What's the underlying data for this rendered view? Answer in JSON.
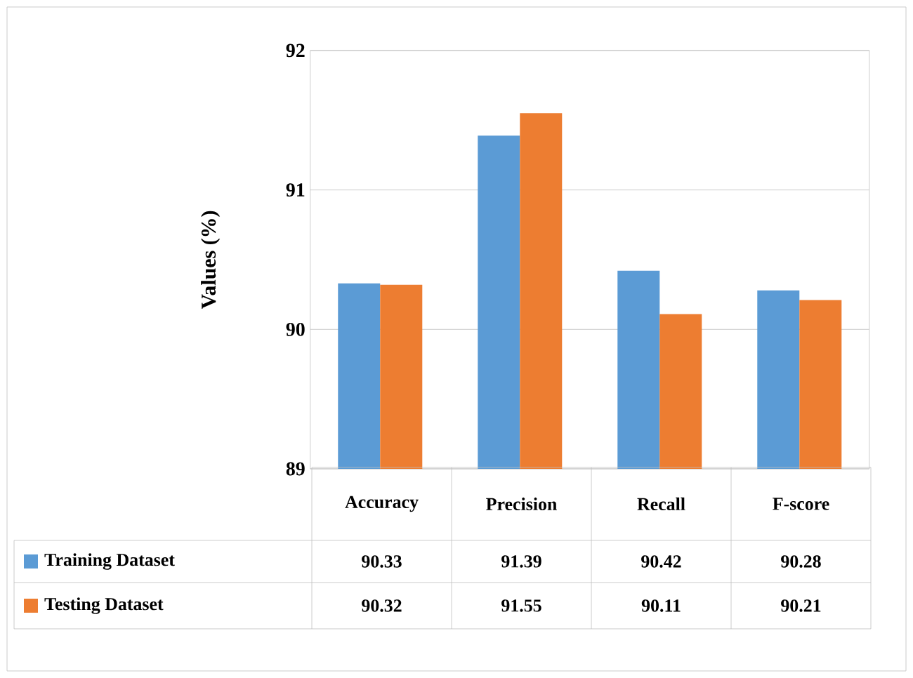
{
  "chart_data": {
    "type": "bar",
    "ylabel": "Values (%)",
    "categories": [
      "Accuracy",
      "Precision",
      "Recall",
      "F-score"
    ],
    "series": [
      {
        "name": "Training Dataset",
        "color": "#5b9bd5",
        "values": [
          90.33,
          91.39,
          90.42,
          90.28
        ]
      },
      {
        "name": "Testing Dataset",
        "color": "#ed7d31",
        "values": [
          90.32,
          91.55,
          90.11,
          90.21
        ]
      }
    ],
    "ylim": [
      89,
      92
    ],
    "yticks": [
      89,
      90,
      91,
      92
    ],
    "grid": "y",
    "legend": "bottom",
    "data_labels": true
  }
}
